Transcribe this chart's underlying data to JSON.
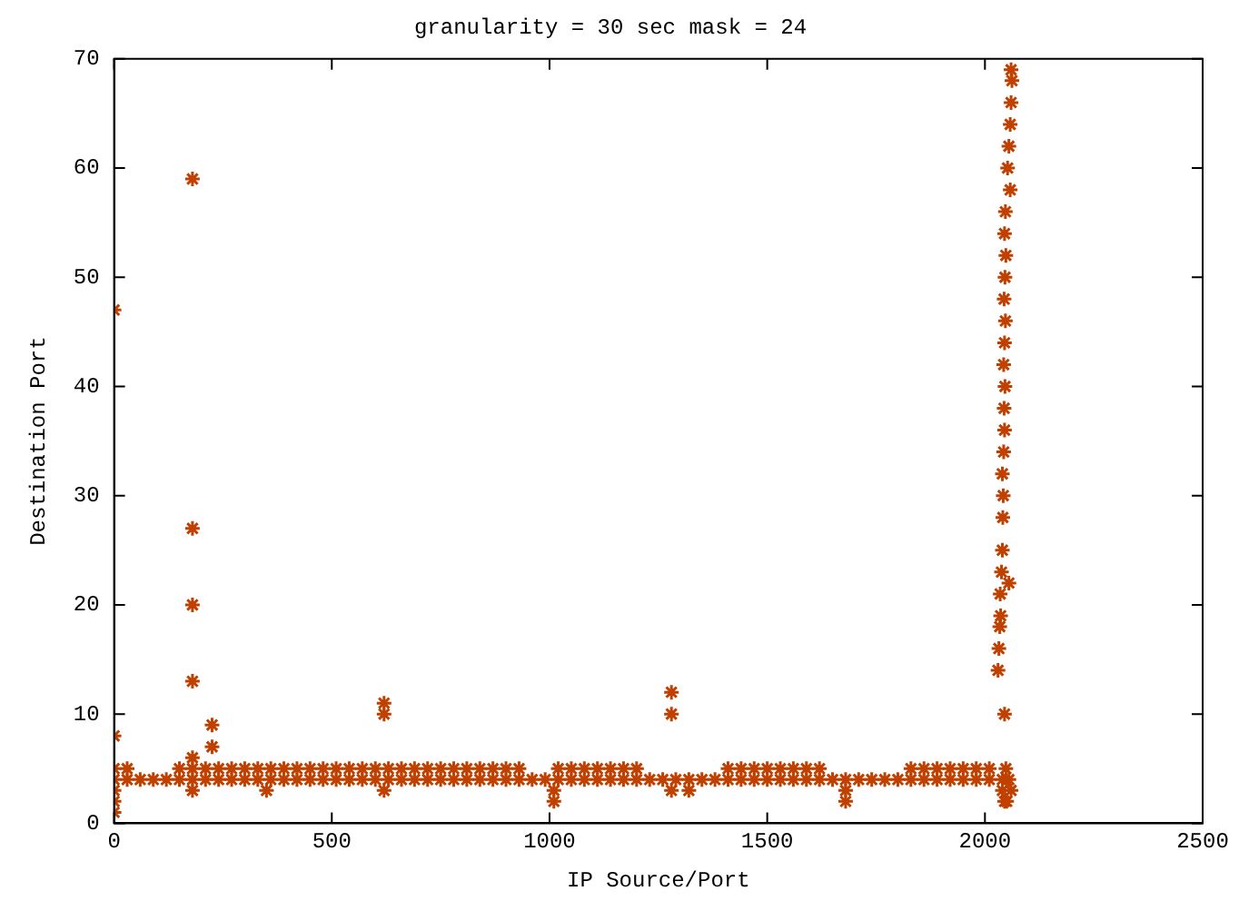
{
  "chart_data": {
    "type": "scatter",
    "title": "granularity = 30 sec mask = 24",
    "xlabel": "IP Source/Port",
    "ylabel": "Destination Port",
    "xlim": [
      0,
      2500
    ],
    "xticks": [
      0,
      500,
      1000,
      1500,
      2000,
      2500
    ],
    "ylim": [
      0,
      70
    ],
    "yticks": [
      0,
      10,
      20,
      30,
      40,
      50,
      60,
      70
    ],
    "grid": false,
    "legend": false,
    "marker": "cross",
    "series": [
      {
        "color": "#c04000",
        "x": [
          0,
          30,
          60,
          90,
          120,
          150,
          180,
          210,
          240,
          270,
          300,
          330,
          360,
          390,
          420,
          450,
          480,
          510,
          540,
          570,
          600,
          630,
          660,
          690,
          720,
          750,
          780,
          810,
          840,
          870,
          900,
          930,
          960,
          990,
          1020,
          1050,
          1080,
          1110,
          1140,
          1170,
          1200,
          1230,
          1260,
          1290,
          1320,
          1350,
          1380,
          1410,
          1440,
          1470,
          1500,
          1530,
          1560,
          1590,
          1620,
          1650,
          1680,
          1710,
          1740,
          1770,
          1800,
          1830,
          1860,
          1890,
          1920,
          1950,
          1980,
          2010,
          2040,
          0,
          30,
          150,
          180,
          210,
          240,
          270,
          300,
          330,
          360,
          390,
          420,
          450,
          480,
          510,
          540,
          570,
          600,
          630,
          660,
          690,
          720,
          750,
          780,
          810,
          840,
          870,
          900,
          930,
          1020,
          1050,
          1080,
          1110,
          1140,
          1170,
          1200,
          1410,
          1440,
          1470,
          1500,
          1530,
          1560,
          1590,
          1620,
          1830,
          1860,
          1890,
          1920,
          1950,
          1980,
          2010,
          0,
          0,
          0,
          0,
          0,
          180,
          180,
          180,
          180,
          180,
          180,
          225,
          225,
          350,
          620,
          620,
          620,
          1010,
          1010,
          1280,
          1280,
          1280,
          1320,
          1680,
          1680,
          2030,
          2032,
          2034,
          2036,
          2035,
          2038,
          2040,
          2041,
          2042,
          2040,
          2043,
          2045,
          2044,
          2046,
          2043,
          2045,
          2047,
          2044,
          2046,
          2048,
          2045,
          2047,
          2058,
          2052,
          2055,
          2058,
          2060,
          2062,
          2060,
          2045,
          2055,
          2040,
          2045,
          2050,
          2055,
          2060,
          2048
        ],
        "values": [
          4,
          4,
          4,
          4,
          4,
          4,
          4,
          4,
          4,
          4,
          4,
          4,
          4,
          4,
          4,
          4,
          4,
          4,
          4,
          4,
          4,
          4,
          4,
          4,
          4,
          4,
          4,
          4,
          4,
          4,
          4,
          4,
          4,
          4,
          4,
          4,
          4,
          4,
          4,
          4,
          4,
          4,
          4,
          4,
          4,
          4,
          4,
          4,
          4,
          4,
          4,
          4,
          4,
          4,
          4,
          4,
          4,
          4,
          4,
          4,
          4,
          4,
          4,
          4,
          4,
          4,
          4,
          4,
          4,
          5,
          5,
          5,
          5,
          5,
          5,
          5,
          5,
          5,
          5,
          5,
          5,
          5,
          5,
          5,
          5,
          5,
          5,
          5,
          5,
          5,
          5,
          5,
          5,
          5,
          5,
          5,
          5,
          5,
          5,
          5,
          5,
          5,
          5,
          5,
          5,
          5,
          5,
          5,
          5,
          5,
          5,
          5,
          5,
          5,
          5,
          5,
          5,
          5,
          5,
          5,
          47,
          8,
          3,
          2,
          1,
          59,
          27,
          20,
          13,
          6,
          3,
          9,
          7,
          3,
          11,
          10,
          3,
          3,
          2,
          12,
          10,
          3,
          3,
          3,
          2,
          14,
          16,
          18,
          19,
          21,
          23,
          25,
          28,
          30,
          32,
          34,
          36,
          38,
          40,
          42,
          44,
          46,
          48,
          50,
          52,
          54,
          56,
          58,
          60,
          62,
          64,
          66,
          68,
          69,
          10,
          22,
          3,
          2,
          2,
          4,
          3,
          5
        ]
      }
    ]
  }
}
